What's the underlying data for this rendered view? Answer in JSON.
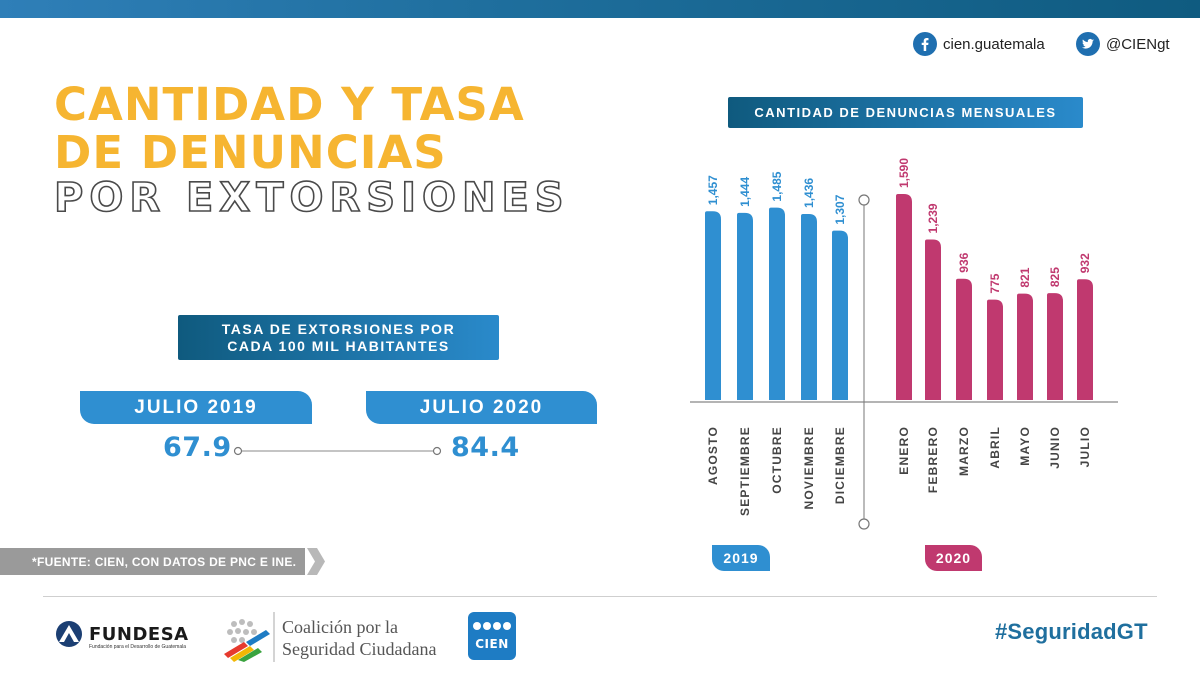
{
  "header": {
    "facebook_handle": "cien.guatemala",
    "twitter_handle": "@CIENgt"
  },
  "title": {
    "line1": "CANTIDAD Y TASA",
    "line2": "DE DENUNCIAS",
    "line3": "POR EXTORSIONES"
  },
  "rate": {
    "heading_line1": "TASA DE EXTORSIONES POR",
    "heading_line2": "CADA 100 MIL HABITANTES",
    "label_2019": "JULIO 2019",
    "label_2020": "JULIO 2020",
    "value_2019": "67.9",
    "value_2020": "84.4"
  },
  "source": "*FUENTE: CIEN, CON DATOS DE PNC E INE.",
  "chart_data": {
    "type": "bar",
    "title": "CANTIDAD DE DENUNCIAS MENSUALES",
    "categories": [
      "AGOSTO",
      "SEPTIEMBRE",
      "OCTUBRE",
      "NOVIEMBRE",
      "DICIEMBRE",
      "ENERO",
      "FEBRERO",
      "MARZO",
      "ABRIL",
      "MAYO",
      "JUNIO",
      "JULIO"
    ],
    "values": [
      1457,
      1444,
      1485,
      1436,
      1307,
      1590,
      1239,
      936,
      775,
      821,
      825,
      932
    ],
    "value_labels": [
      "1,457",
      "1,444",
      "1,485",
      "1,436",
      "1,307",
      "1,590",
      "1,239",
      "936",
      "775",
      "821",
      "825",
      "932"
    ],
    "groups": [
      {
        "name": "2019",
        "start": 0,
        "count": 5,
        "color": "#2f8fd1"
      },
      {
        "name": "2020",
        "start": 5,
        "count": 7,
        "color": "#c0396f"
      }
    ],
    "ylim": [
      0,
      1590
    ],
    "grid": false,
    "legend": "none"
  },
  "footer": {
    "fundesa_name": "FUNDESA",
    "fundesa_tagline": "Fundación para el Desarrollo de Guatemala",
    "coalicion_line1": "Coalición por la",
    "coalicion_line2": "Seguridad Ciudadana",
    "cien_label": "CIEN",
    "hashtag": "#SeguridadGT"
  },
  "colors": {
    "accent_yellow": "#f6b531",
    "blue": "#2f8fd1",
    "magenta": "#c0396f",
    "navy": "#0f5a7e"
  }
}
